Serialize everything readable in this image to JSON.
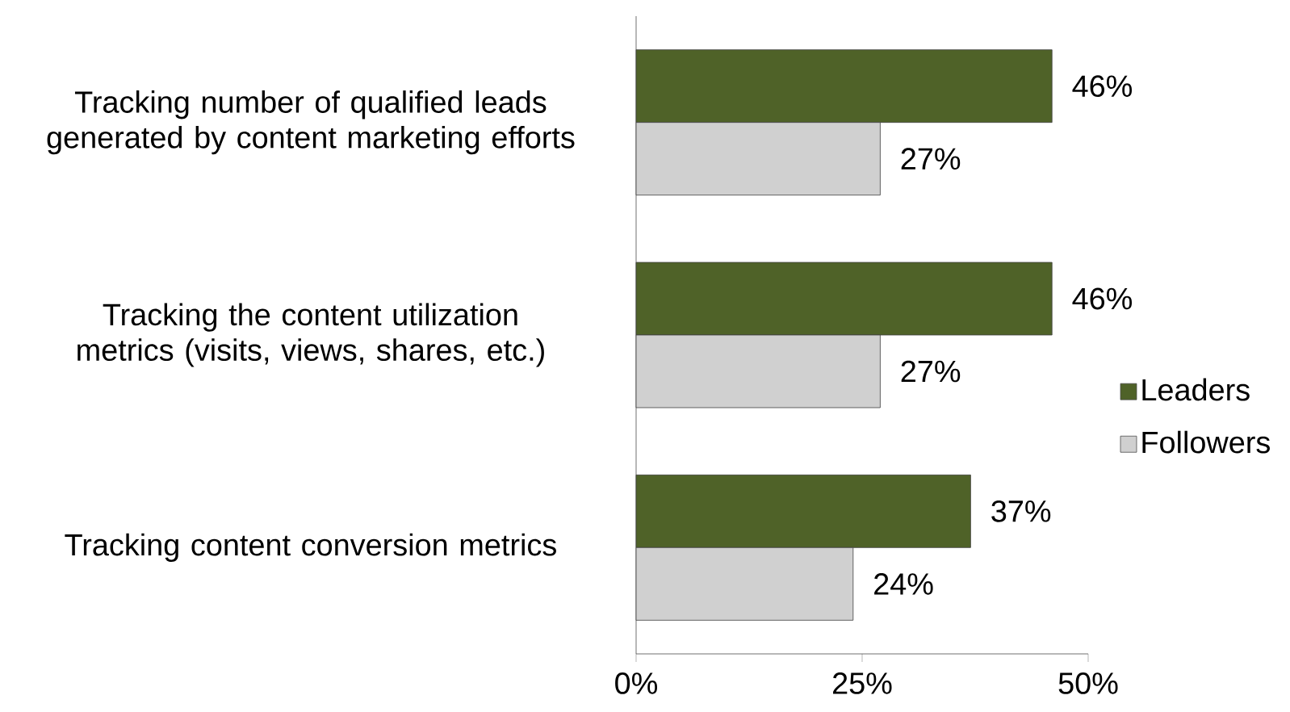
{
  "chart_data": {
    "type": "bar",
    "orientation": "horizontal",
    "categories": [
      "Tracking number of qualified leads generated by content marketing efforts",
      "Tracking the content utilization metrics (visits, views, shares, etc.)",
      "Tracking content conversion metrics"
    ],
    "series": [
      {
        "name": "Leaders",
        "color": "#4f6228",
        "values": [
          46,
          46,
          37
        ],
        "value_labels": [
          "46%",
          "46%",
          "37%"
        ]
      },
      {
        "name": "Followers",
        "color": "#d0d0d0",
        "values": [
          27,
          27,
          24
        ],
        "value_labels": [
          "27%",
          "27%",
          "24%"
        ]
      }
    ],
    "xlim": [
      0,
      50
    ],
    "xticks": [
      {
        "value": 0,
        "label": "0%"
      },
      {
        "value": 25,
        "label": "25%"
      },
      {
        "value": 50,
        "label": "50%"
      }
    ],
    "legend": "right",
    "grid": false
  }
}
